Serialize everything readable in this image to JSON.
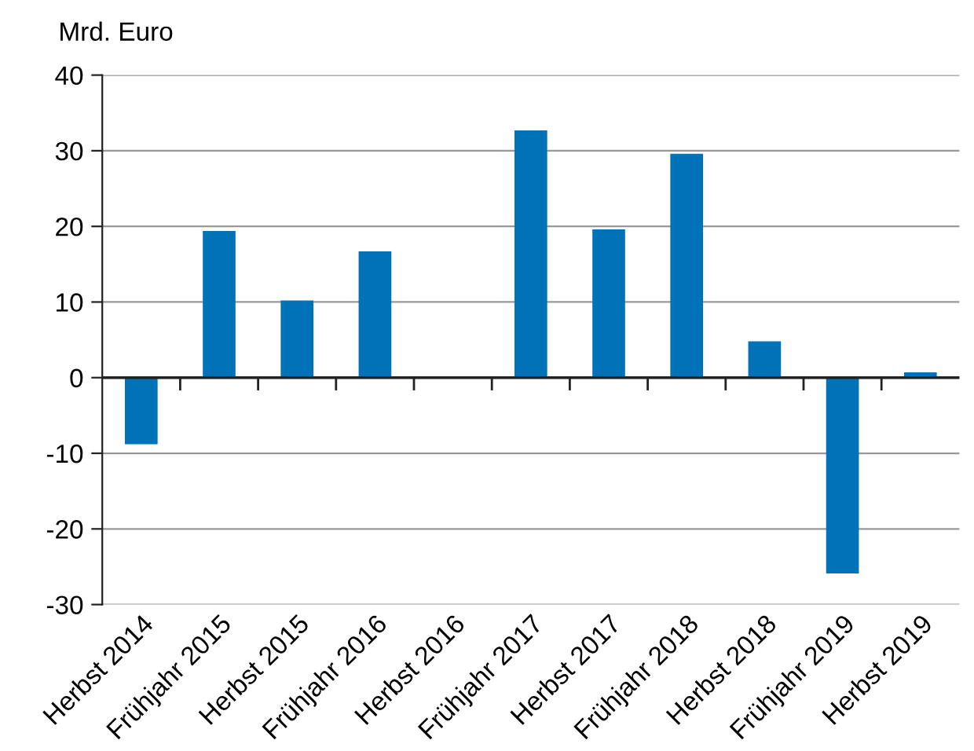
{
  "chart_data": {
    "type": "bar",
    "ylabel": "Mrd. Euro",
    "categories": [
      "Herbst 2014",
      "Frühjahr 2015",
      "Herbst 2015",
      "Frühjahr 2016",
      "Herbst 2016",
      "Frühjahr 2017",
      "Herbst 2017",
      "Frühjahr 2018",
      "Herbst 2018",
      "Frühjahr 2019",
      "Herbst 2019"
    ],
    "values": [
      -8.8,
      19.4,
      10.2,
      16.7,
      0,
      32.7,
      19.6,
      29.6,
      4.8,
      -25.9,
      0.7
    ],
    "color": "#0072b7",
    "ylim": [
      -30,
      40
    ],
    "yticks": [
      -30,
      -20,
      -10,
      0,
      10,
      20,
      30,
      40
    ],
    "grid": "y"
  }
}
